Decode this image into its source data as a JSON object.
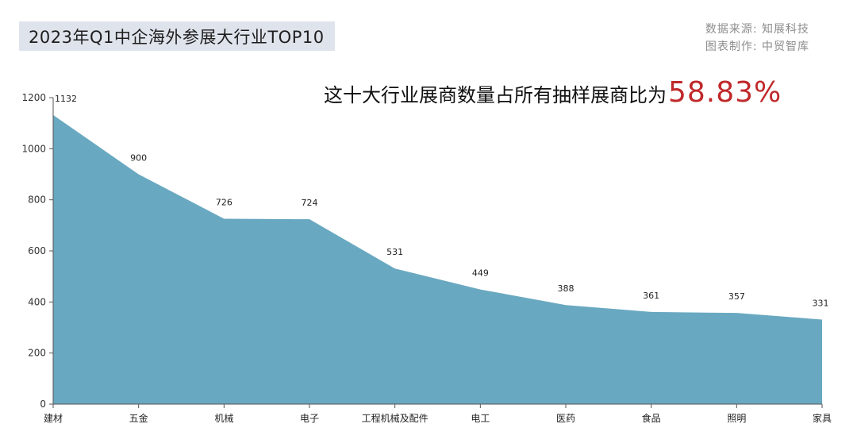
{
  "header": {
    "title": "2023年Q1中企海外参展大行业TOP10",
    "source_line1": "数据来源: 知展科技",
    "source_line2": "图表制作: 中贸智库"
  },
  "headline": {
    "text": "这十大行业展商数量占所有抽样展商比为",
    "percentage": "58.83%"
  },
  "chart_data": {
    "type": "area",
    "categories": [
      "建材",
      "五金",
      "机械",
      "电子",
      "工程机械及配件",
      "电工",
      "医药",
      "食品",
      "照明",
      "家具"
    ],
    "values": [
      1132,
      900,
      726,
      724,
      531,
      449,
      388,
      361,
      357,
      331
    ],
    "ylim": [
      0,
      1200
    ],
    "yticks": [
      0,
      200,
      400,
      600,
      800,
      1000,
      1200
    ],
    "title": "",
    "xlabel": "",
    "ylabel": "",
    "grid": false,
    "fill_color": "#69a8c1"
  }
}
